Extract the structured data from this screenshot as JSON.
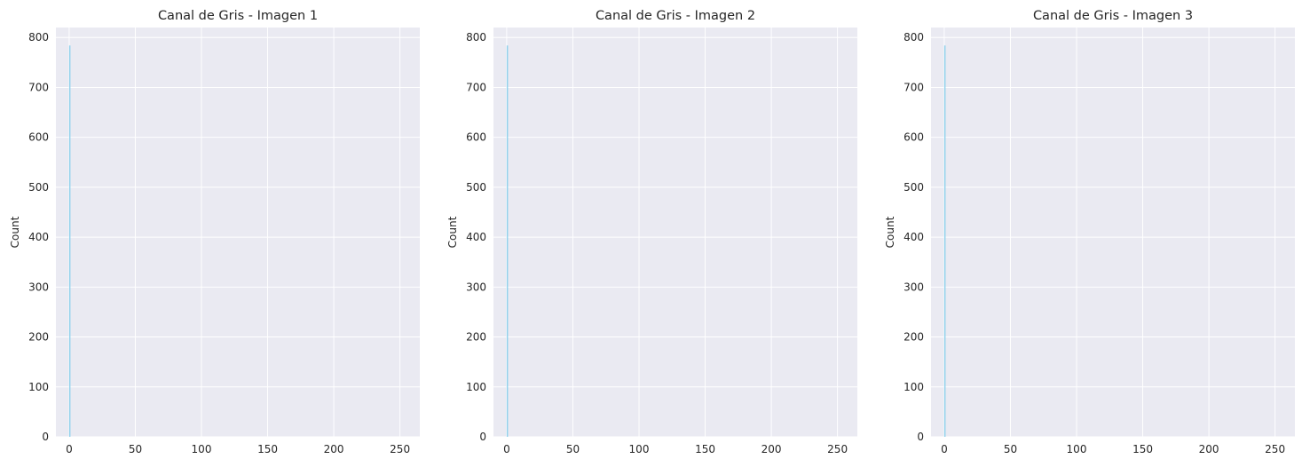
{
  "colors": {
    "axes_bg": "#eaeaf2",
    "grid": "#ffffff",
    "bar_fill": "#87ceeb",
    "text": "#262626"
  },
  "chart_data": [
    {
      "type": "bar",
      "title": "Canal de Gris - Imagen 1",
      "xlabel": "",
      "ylabel": "Count",
      "xlim": [
        -10,
        265
      ],
      "ylim": [
        0,
        820
      ],
      "xticks": [
        0,
        50,
        100,
        150,
        200,
        250
      ],
      "yticks": [
        0,
        100,
        200,
        300,
        400,
        500,
        600,
        700,
        800
      ],
      "grid": true,
      "bins": [
        {
          "x0": 0,
          "x1": 1,
          "count": 784
        }
      ]
    },
    {
      "type": "bar",
      "title": "Canal de Gris - Imagen 2",
      "xlabel": "",
      "ylabel": "Count",
      "xlim": [
        -10,
        265
      ],
      "ylim": [
        0,
        820
      ],
      "xticks": [
        0,
        50,
        100,
        150,
        200,
        250
      ],
      "yticks": [
        0,
        100,
        200,
        300,
        400,
        500,
        600,
        700,
        800
      ],
      "grid": true,
      "bins": [
        {
          "x0": 0,
          "x1": 1,
          "count": 784
        }
      ]
    },
    {
      "type": "bar",
      "title": "Canal de Gris - Imagen 3",
      "xlabel": "",
      "ylabel": "Count",
      "xlim": [
        -10,
        265
      ],
      "ylim": [
        0,
        820
      ],
      "xticks": [
        0,
        50,
        100,
        150,
        200,
        250
      ],
      "yticks": [
        0,
        100,
        200,
        300,
        400,
        500,
        600,
        700,
        800
      ],
      "grid": true,
      "bins": [
        {
          "x0": 0,
          "x1": 1,
          "count": 784
        }
      ]
    }
  ]
}
